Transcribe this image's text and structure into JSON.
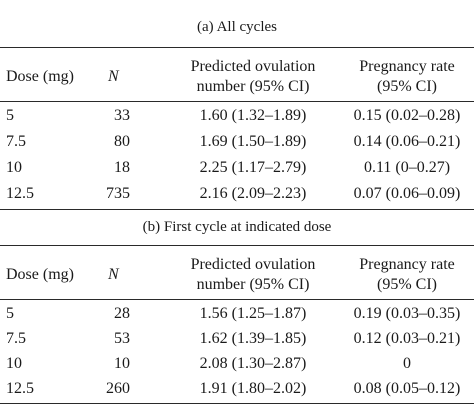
{
  "tables": [
    {
      "caption": "(a)  All cycles",
      "headers": {
        "dose": "Dose (mg)",
        "n": "N",
        "ovulation_line1": "Predicted ovulation",
        "ovulation_line2": "number (95% CI)",
        "pregnancy_line1": "Pregnancy rate",
        "pregnancy_line2": "(95% CI)"
      },
      "rows": [
        {
          "dose": "5",
          "n": "33",
          "ovulation": "1.60 (1.32–1.89)",
          "pregnancy": "0.15 (0.02–0.28)"
        },
        {
          "dose": "7.5",
          "n": "80",
          "ovulation": "1.69 (1.50–1.89)",
          "pregnancy": "0.14 (0.06–0.21)"
        },
        {
          "dose": "10",
          "n": "18",
          "ovulation": "2.25 (1.17–2.79)",
          "pregnancy": "0.11 (0–0.27)"
        },
        {
          "dose": "12.5",
          "n": "735",
          "ovulation": "2.16 (2.09–2.23)",
          "pregnancy": "0.07 (0.06–0.09)"
        }
      ]
    },
    {
      "caption": "(b)  First cycle at indicated dose",
      "headers": {
        "dose": "Dose (mg)",
        "n": "N",
        "ovulation_line1": "Predicted ovulation",
        "ovulation_line2": "number (95% CI)",
        "pregnancy_line1": "Pregnancy rate",
        "pregnancy_line2": "(95% CI)"
      },
      "rows": [
        {
          "dose": "5",
          "n": "28",
          "ovulation": "1.56 (1.25–1.87)",
          "pregnancy": "0.19 (0.03–0.35)"
        },
        {
          "dose": "7.5",
          "n": "53",
          "ovulation": "1.62 (1.39–1.85)",
          "pregnancy": "0.12 (0.03–0.21)"
        },
        {
          "dose": "10",
          "n": "10",
          "ovulation": "2.08 (1.30–2.87)",
          "pregnancy": "0"
        },
        {
          "dose": "12.5",
          "n": "260",
          "ovulation": "1.91 (1.80–2.02)",
          "pregnancy": "0.08 (0.05–0.12)"
        }
      ]
    }
  ]
}
